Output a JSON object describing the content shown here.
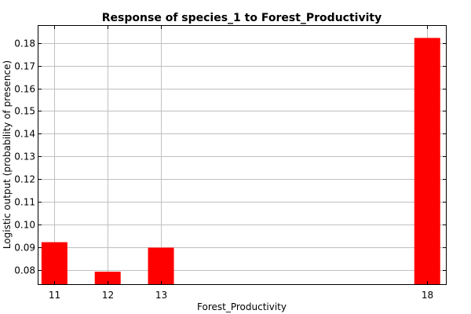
{
  "chart_data": {
    "type": "bar",
    "title": "Response of species_1 to Forest_Productivity",
    "xlabel": "Forest_Productivity",
    "ylabel": "Logistic output (probability of presence)",
    "x": [
      11,
      12,
      13,
      18
    ],
    "values": [
      0.0922,
      0.0792,
      0.0898,
      0.1822
    ],
    "xlim": [
      10.7,
      18.35
    ],
    "ylim": [
      0.0737,
      0.1875
    ],
    "xticks": [
      "11",
      "12",
      "13",
      "18"
    ],
    "yticks": [
      "0.08",
      "0.09",
      "0.10",
      "0.11",
      "0.12",
      "0.13",
      "0.14",
      "0.15",
      "0.16",
      "0.17",
      "0.18"
    ],
    "grid": true,
    "bar_color": "#ff0000",
    "grid_color": "#c0c0c0"
  }
}
